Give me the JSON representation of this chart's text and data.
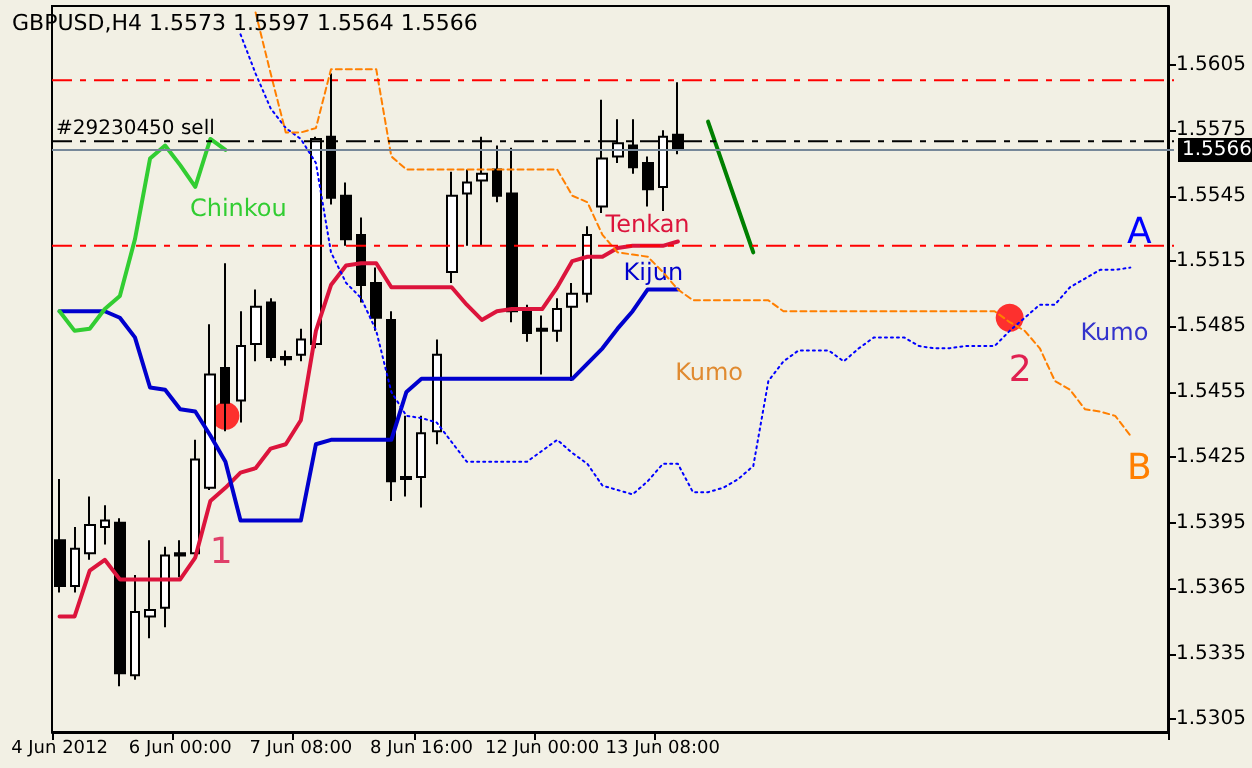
{
  "chart_data": {
    "type": "candlestick",
    "title": "GBPUSD,H4 1.5573 1.5597 1.5564 1.5566",
    "categories": [
      "4 Jun 2012",
      null,
      null,
      null,
      null,
      null,
      null,
      null,
      "6 Jun 00:00",
      null,
      null,
      null,
      null,
      null,
      null,
      null,
      "7 Jun 08:00",
      null,
      null,
      null,
      null,
      null,
      null,
      null,
      "8 Jun 16:00",
      null,
      null,
      null,
      null,
      null,
      null,
      null,
      "12 Jun 00:00",
      null,
      null,
      null,
      null,
      null,
      null,
      null,
      "13 Jun 08:00",
      null,
      null,
      null,
      null,
      null,
      null,
      null,
      null,
      null,
      null,
      null,
      null,
      null,
      null,
      null,
      null,
      null,
      null,
      null,
      null,
      null,
      null,
      null,
      null,
      null,
      null,
      null,
      null,
      null,
      null,
      null,
      null,
      null
    ],
    "ohlc": [
      [
        1.5387,
        1.5415,
        1.5363,
        1.5366
      ],
      [
        1.5366,
        1.5393,
        1.5363,
        1.5383
      ],
      [
        1.5381,
        1.5407,
        1.5378,
        1.5394
      ],
      [
        1.5393,
        1.5403,
        1.5385,
        1.5396
      ],
      [
        1.5395,
        1.5397,
        1.532,
        1.5326
      ],
      [
        1.5325,
        1.5371,
        1.5323,
        1.5354
      ],
      [
        1.5352,
        1.5387,
        1.5342,
        1.5355
      ],
      [
        1.5356,
        1.5384,
        1.5347,
        1.538
      ],
      [
        1.5381,
        1.5387,
        1.537,
        1.538
      ],
      [
        1.5381,
        1.5433,
        1.538,
        1.5424
      ],
      [
        1.5411,
        1.5486,
        1.541,
        1.5463
      ],
      [
        1.5466,
        1.5514,
        1.5437,
        1.545
      ],
      [
        1.5451,
        1.5492,
        1.5441,
        1.5476
      ],
      [
        1.5477,
        1.5502,
        1.5469,
        1.5494
      ],
      [
        1.5496,
        1.5498,
        1.5469,
        1.5471
      ],
      [
        1.5471,
        1.5474,
        1.5467,
        1.547
      ],
      [
        1.5472,
        1.5484,
        1.5469,
        1.5479
      ],
      [
        1.5477,
        1.5572,
        1.5475,
        1.5571
      ],
      [
        1.5572,
        1.5601,
        1.5541,
        1.5544
      ],
      [
        1.5545,
        1.5551,
        1.5522,
        1.5525
      ],
      [
        1.5527,
        1.5535,
        1.5496,
        1.5504
      ],
      [
        1.5505,
        1.5512,
        1.5483,
        1.5489
      ],
      [
        1.5488,
        1.5492,
        1.5405,
        1.5414
      ],
      [
        1.5415,
        1.5444,
        1.5407,
        1.5416
      ],
      [
        1.5416,
        1.5444,
        1.5402,
        1.5436
      ],
      [
        1.5437,
        1.5479,
        1.5431,
        1.5472
      ],
      [
        1.551,
        1.5556,
        1.5505,
        1.5545
      ],
      [
        1.5546,
        1.5557,
        1.5522,
        1.5551
      ],
      [
        1.5552,
        1.5572,
        1.5522,
        1.5555
      ],
      [
        1.5557,
        1.5568,
        1.5542,
        1.5545
      ],
      [
        1.5546,
        1.5567,
        1.5487,
        1.5492
      ],
      [
        1.5493,
        1.5495,
        1.5478,
        1.5482
      ],
      [
        1.5484,
        1.549,
        1.5463,
        1.5483
      ],
      [
        1.5483,
        1.5498,
        1.5478,
        1.5493
      ],
      [
        1.5494,
        1.5505,
        1.546,
        1.55
      ],
      [
        1.55,
        1.5531,
        1.5496,
        1.5527
      ],
      [
        1.554,
        1.5589,
        1.5537,
        1.5562
      ],
      [
        1.5563,
        1.558,
        1.556,
        1.5569
      ],
      [
        1.5568,
        1.558,
        1.5555,
        1.5558
      ],
      [
        1.556,
        1.5563,
        1.554,
        1.5548
      ],
      [
        1.5549,
        1.5575,
        1.5538,
        1.5572
      ],
      [
        1.5573,
        1.5597,
        1.5564,
        1.5566
      ],
      null,
      null,
      null,
      null,
      null,
      null,
      null,
      null,
      null,
      null,
      null,
      null,
      null,
      null,
      null,
      null,
      null,
      null,
      null,
      null,
      null,
      null,
      null,
      null,
      null,
      null,
      null,
      null,
      null,
      null,
      null,
      null
    ],
    "series": [
      {
        "name": "Tenkan",
        "type": "line",
        "color": "#dc143c",
        "values": [
          1.5352,
          1.5352,
          1.5373,
          1.5378,
          1.5369,
          1.5369,
          1.5369,
          1.5369,
          1.5369,
          1.5379,
          1.5405,
          1.5411,
          1.5418,
          1.542,
          1.5429,
          1.5431,
          1.5442,
          1.5483,
          1.5504,
          1.5513,
          1.5514,
          1.5514,
          1.5503,
          1.5503,
          1.5503,
          1.5503,
          1.5503,
          1.5495,
          1.5488,
          1.5492,
          1.5493,
          1.5493,
          1.5493,
          1.5503,
          1.5515,
          1.5517,
          1.5517,
          1.5521,
          1.5522,
          1.5522,
          1.5522,
          1.5524,
          null,
          null,
          null,
          null,
          null,
          null,
          null,
          null,
          null,
          null,
          null,
          null,
          null,
          null,
          null,
          null,
          null,
          null,
          null,
          null,
          null,
          null,
          null,
          null,
          null,
          null,
          null,
          null,
          null,
          null,
          null,
          null
        ]
      },
      {
        "name": "Kijun",
        "type": "line",
        "color": "#0000cd",
        "values": [
          1.5492,
          1.5492,
          1.5492,
          1.5492,
          1.5489,
          1.548,
          1.5457,
          1.5456,
          1.5447,
          1.5446,
          1.5435,
          1.5423,
          1.5396,
          1.5396,
          1.5396,
          1.5396,
          1.5396,
          1.5431,
          1.5433,
          1.5433,
          1.5433,
          1.5433,
          1.5433,
          1.5455,
          1.5461,
          1.5461,
          1.5461,
          1.5461,
          1.5461,
          1.5461,
          1.5461,
          1.5461,
          1.5461,
          1.5461,
          1.5461,
          1.5468,
          1.5475,
          1.5484,
          1.5492,
          1.5502,
          1.5502,
          1.5502,
          null,
          null,
          null,
          null,
          null,
          null,
          null,
          null,
          null,
          null,
          null,
          null,
          null,
          null,
          null,
          null,
          null,
          null,
          null,
          null,
          null,
          null,
          null,
          null,
          null,
          null,
          null,
          null,
          null,
          null,
          null,
          null
        ]
      },
      {
        "name": "Chinkou",
        "type": "line",
        "color": "#32cd32",
        "values": [
          1.5492,
          1.5483,
          1.5484,
          1.5493,
          1.5499,
          1.5525,
          1.5562,
          1.5568,
          1.5559,
          1.5549,
          1.5571,
          1.5566,
          null,
          null,
          null,
          null,
          null,
          null,
          null,
          null,
          null,
          null,
          null,
          null,
          null,
          null,
          null,
          null,
          null,
          null,
          null,
          null,
          null,
          null,
          null,
          null,
          null,
          null,
          null,
          null,
          null,
          null,
          null,
          null,
          null,
          null,
          null,
          null,
          null,
          null,
          null,
          null,
          null,
          null,
          null,
          null,
          null,
          null,
          null,
          null,
          null,
          null,
          null,
          null,
          null,
          null,
          null,
          null,
          null,
          null,
          null,
          null,
          null,
          null
        ]
      },
      {
        "name": "A",
        "type": "line",
        "color": "#0000ff",
        "line_style": "dotted",
        "values": [
          null,
          null,
          null,
          null,
          null,
          null,
          null,
          null,
          null,
          null,
          null,
          null,
          1.5619,
          1.5601,
          1.5585,
          1.5576,
          1.5571,
          1.556,
          1.5519,
          1.5505,
          1.5498,
          1.5483,
          1.5455,
          1.5444,
          1.5443,
          1.5441,
          1.5432,
          1.5423,
          1.5423,
          1.5423,
          1.5423,
          1.5423,
          1.5428,
          1.5433,
          1.5427,
          1.5422,
          1.5412,
          1.541,
          1.5408,
          1.5414,
          1.5422,
          1.5422,
          1.5409,
          1.5409,
          1.5411,
          1.5415,
          1.5421,
          1.546,
          1.5469,
          1.5474,
          1.5474,
          1.5474,
          1.5469,
          1.5475,
          1.548,
          1.548,
          1.548,
          1.5476,
          1.5475,
          1.5475,
          1.5476,
          1.5476,
          1.5476,
          1.5483,
          1.5489,
          1.5495,
          1.5495,
          1.5503,
          1.5507,
          1.5511,
          1.5511,
          1.5512,
          null,
          null
        ]
      },
      {
        "name": "B",
        "type": "line",
        "color": "#ff7f00",
        "line_style": "dashed",
        "values": [
          null,
          null,
          null,
          null,
          null,
          null,
          null,
          null,
          null,
          null,
          null,
          null,
          null,
          1.5629,
          1.5601,
          1.5574,
          1.5574,
          1.5576,
          1.5603,
          1.5603,
          1.5603,
          1.5603,
          1.5563,
          1.5557,
          1.5557,
          1.5557,
          1.5557,
          1.5557,
          1.5557,
          1.5557,
          1.5557,
          1.5557,
          1.5557,
          1.5557,
          1.5545,
          1.5542,
          1.5527,
          1.5519,
          1.5518,
          1.5517,
          1.551,
          1.5502,
          1.5497,
          1.5497,
          1.5497,
          1.5497,
          1.5497,
          1.5497,
          1.5492,
          1.5492,
          1.5492,
          1.5492,
          1.5492,
          1.5492,
          1.5492,
          1.5492,
          1.5492,
          1.5492,
          1.5492,
          1.5492,
          1.5492,
          1.5492,
          1.5492,
          1.5487,
          1.5483,
          1.5475,
          1.546,
          1.5456,
          1.5447,
          1.5446,
          1.5444,
          1.5435,
          null,
          null
        ]
      },
      {
        "type": "line",
        "color": "#008000",
        "values": [
          null,
          null,
          null,
          null,
          null,
          null,
          null,
          null,
          null,
          null,
          null,
          null,
          null,
          null,
          null,
          null,
          null,
          null,
          null,
          null,
          null,
          null,
          null,
          null,
          null,
          null,
          null,
          null,
          null,
          null,
          null,
          null,
          null,
          null,
          null,
          null,
          null,
          null,
          null,
          null,
          null,
          null,
          null,
          1.5579,
          1.5559,
          1.5539,
          1.5519,
          null,
          null,
          null,
          null,
          null,
          null,
          null,
          null,
          null,
          null,
          null,
          null,
          null,
          null,
          null,
          null,
          null,
          null,
          null,
          null,
          null,
          null,
          null,
          null,
          null,
          null,
          null
        ]
      },
      {
        "type": "scatter",
        "marker": "circle",
        "color": "#ff0000",
        "values": [
          null,
          null,
          null,
          null,
          null,
          null,
          null,
          null,
          null,
          null,
          null,
          1.5444,
          null,
          null,
          null,
          null,
          null,
          null,
          null,
          null,
          null,
          null,
          null,
          null,
          null,
          null,
          null,
          null,
          null,
          null,
          null,
          null,
          null,
          null,
          null,
          null,
          null,
          null,
          null,
          null,
          null,
          null,
          null,
          null,
          null,
          null,
          null,
          null,
          null,
          null,
          null,
          null,
          null,
          null,
          null,
          null,
          null,
          null,
          null,
          null,
          null,
          null,
          null,
          1.5489,
          null,
          null,
          null,
          null,
          null,
          null,
          null,
          null,
          null,
          null
        ]
      }
    ],
    "ylim": [
      1.5299,
      1.5632
    ],
    "yticks": [
      1.5305,
      1.5335,
      1.5365,
      1.5395,
      1.5425,
      1.5455,
      1.5485,
      1.5515,
      1.5545,
      1.5575,
      1.5605
    ],
    "ref_lines": [
      {
        "axis": "y",
        "value": 1.5598,
        "color": "#ff0000",
        "line_style": "dashed"
      },
      {
        "axis": "y",
        "value": 1.557,
        "label": "#29230450 sell",
        "color": "#000000",
        "line_style": "dashed"
      },
      {
        "axis": "y",
        "value": 1.5566,
        "label": "1.5566",
        "color": "#778899",
        "line_style": "solid"
      },
      {
        "axis": "y",
        "value": 1.5522,
        "color": "#ff0000",
        "line_style": "dashed"
      }
    ],
    "annotations": [
      "Kumo",
      "Kumo",
      "1",
      "2"
    ],
    "marker": "none",
    "grid": false,
    "legend": false
  }
}
